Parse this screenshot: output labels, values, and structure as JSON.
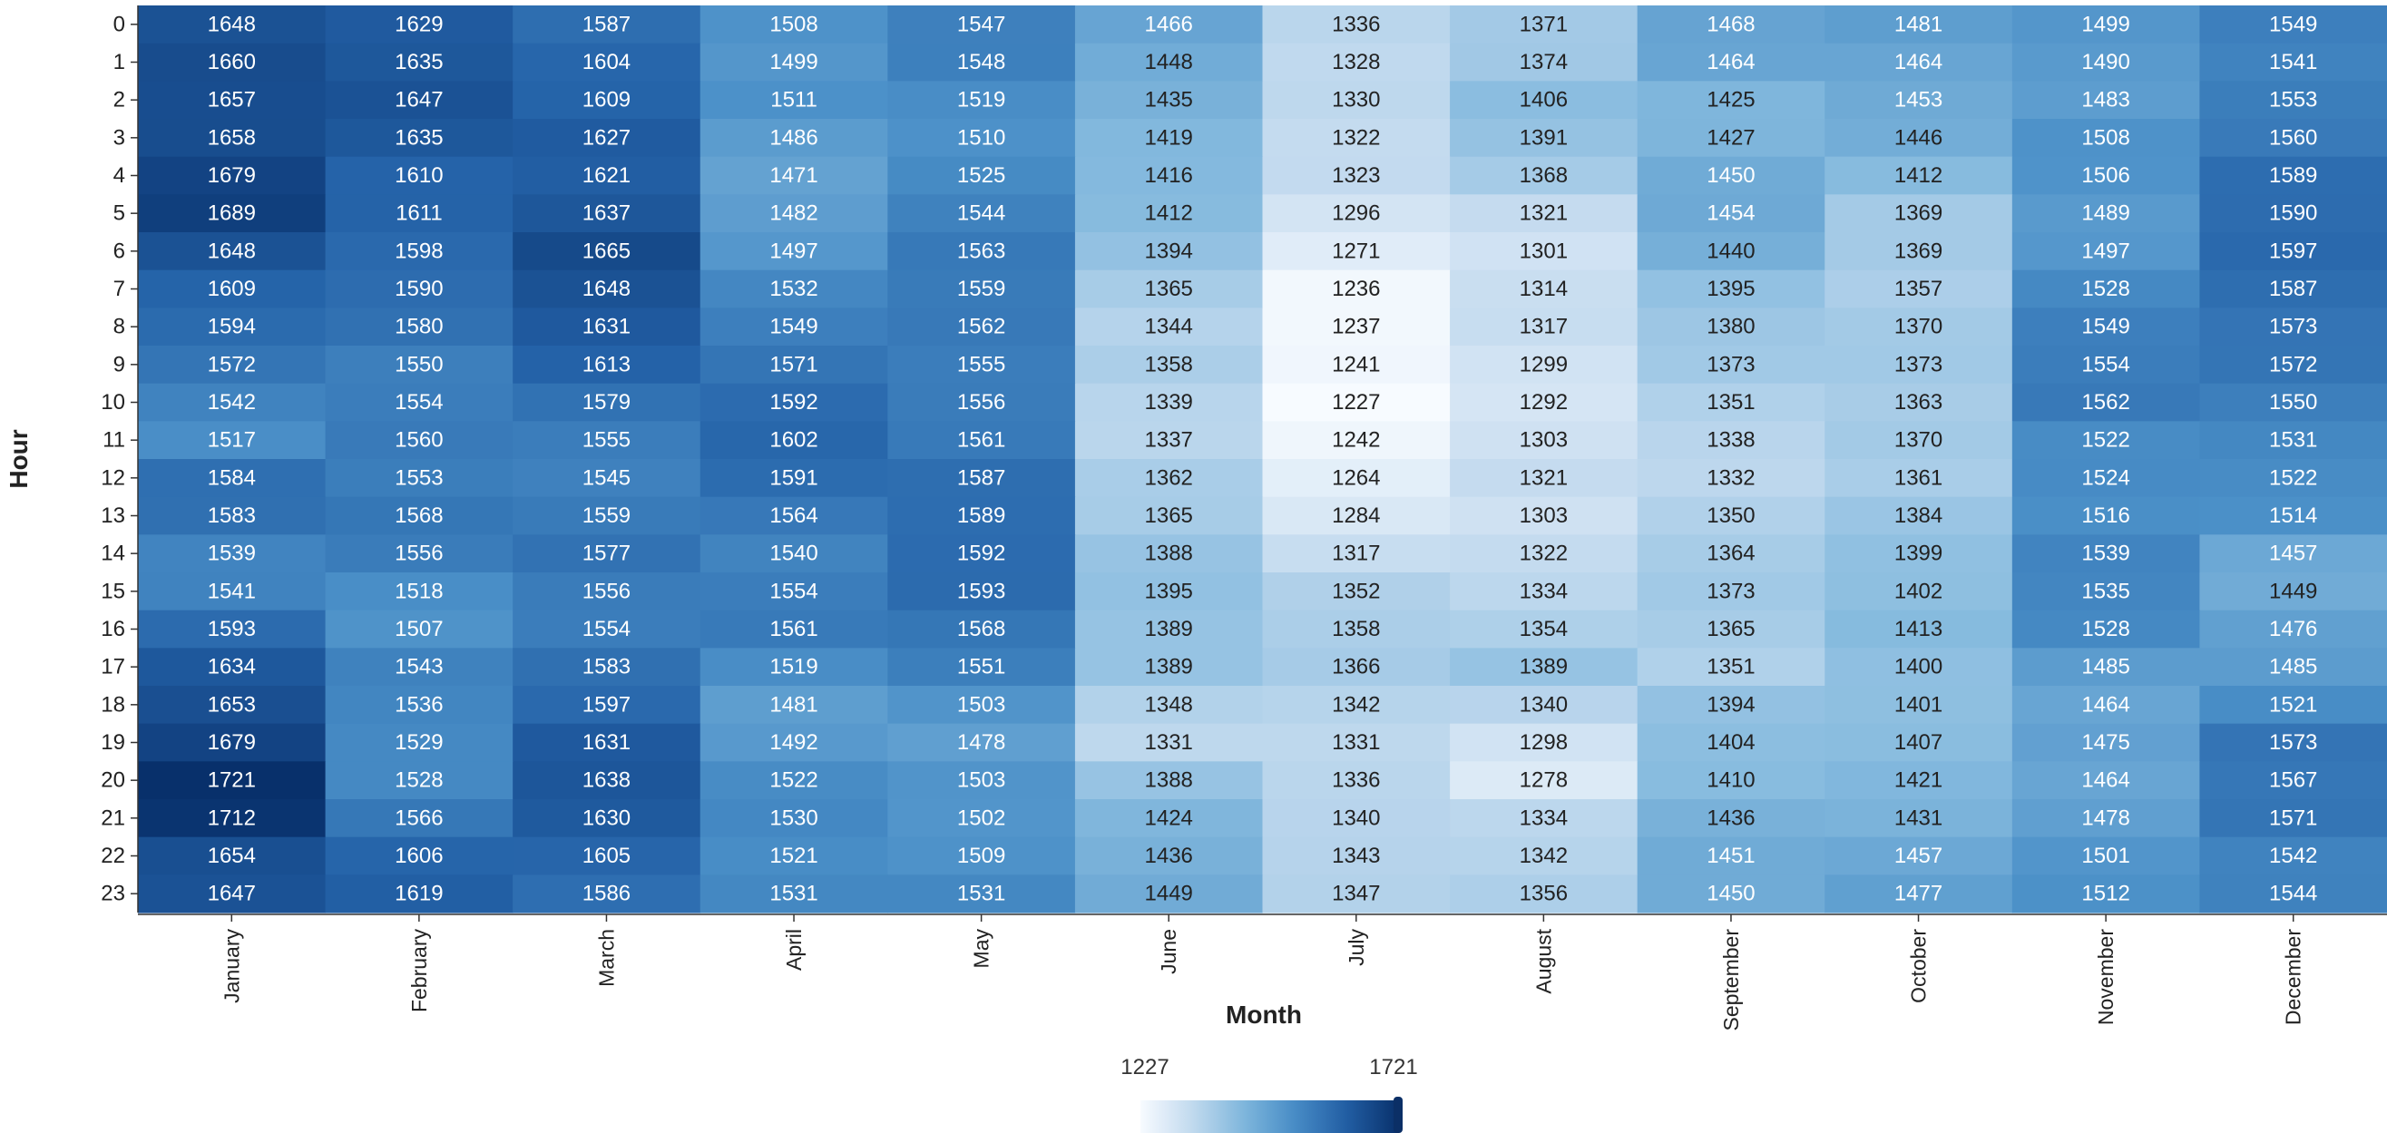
{
  "chart_data": {
    "type": "heatmap",
    "title": "",
    "xlabel": "Month",
    "ylabel": "Hour",
    "x_categories": [
      "January",
      "February",
      "March",
      "April",
      "May",
      "June",
      "July",
      "August",
      "September",
      "October",
      "November",
      "December"
    ],
    "y_categories": [
      "0",
      "1",
      "2",
      "3",
      "4",
      "5",
      "6",
      "7",
      "8",
      "9",
      "10",
      "11",
      "12",
      "13",
      "14",
      "15",
      "16",
      "17",
      "18",
      "19",
      "20",
      "21",
      "22",
      "23"
    ],
    "values": [
      [
        1648,
        1629,
        1587,
        1508,
        1547,
        1466,
        1336,
        1371,
        1468,
        1481,
        1499,
        1549
      ],
      [
        1660,
        1635,
        1604,
        1499,
        1548,
        1448,
        1328,
        1374,
        1464,
        1464,
        1490,
        1541
      ],
      [
        1657,
        1647,
        1609,
        1511,
        1519,
        1435,
        1330,
        1406,
        1425,
        1453,
        1483,
        1553
      ],
      [
        1658,
        1635,
        1627,
        1486,
        1510,
        1419,
        1322,
        1391,
        1427,
        1446,
        1508,
        1560
      ],
      [
        1679,
        1610,
        1621,
        1471,
        1525,
        1416,
        1323,
        1368,
        1450,
        1412,
        1506,
        1589
      ],
      [
        1689,
        1611,
        1637,
        1482,
        1544,
        1412,
        1296,
        1321,
        1454,
        1369,
        1489,
        1590
      ],
      [
        1648,
        1598,
        1665,
        1497,
        1563,
        1394,
        1271,
        1301,
        1440,
        1369,
        1497,
        1597
      ],
      [
        1609,
        1590,
        1648,
        1532,
        1559,
        1365,
        1236,
        1314,
        1395,
        1357,
        1528,
        1587
      ],
      [
        1594,
        1580,
        1631,
        1549,
        1562,
        1344,
        1237,
        1317,
        1380,
        1370,
        1549,
        1573
      ],
      [
        1572,
        1550,
        1613,
        1571,
        1555,
        1358,
        1241,
        1299,
        1373,
        1373,
        1554,
        1572
      ],
      [
        1542,
        1554,
        1579,
        1592,
        1556,
        1339,
        1227,
        1292,
        1351,
        1363,
        1562,
        1550
      ],
      [
        1517,
        1560,
        1555,
        1602,
        1561,
        1337,
        1242,
        1303,
        1338,
        1370,
        1522,
        1531
      ],
      [
        1584,
        1553,
        1545,
        1591,
        1587,
        1362,
        1264,
        1321,
        1332,
        1361,
        1524,
        1522
      ],
      [
        1583,
        1568,
        1559,
        1564,
        1589,
        1365,
        1284,
        1303,
        1350,
        1384,
        1516,
        1514
      ],
      [
        1539,
        1556,
        1577,
        1540,
        1592,
        1388,
        1317,
        1322,
        1364,
        1399,
        1539,
        1457
      ],
      [
        1541,
        1518,
        1556,
        1554,
        1593,
        1395,
        1352,
        1334,
        1373,
        1402,
        1535,
        1449
      ],
      [
        1593,
        1507,
        1554,
        1561,
        1568,
        1389,
        1358,
        1354,
        1365,
        1413,
        1528,
        1476
      ],
      [
        1634,
        1543,
        1583,
        1519,
        1551,
        1389,
        1366,
        1389,
        1351,
        1400,
        1485,
        1485
      ],
      [
        1653,
        1536,
        1597,
        1481,
        1503,
        1348,
        1342,
        1340,
        1394,
        1401,
        1464,
        1521
      ],
      [
        1679,
        1529,
        1631,
        1492,
        1478,
        1331,
        1331,
        1298,
        1404,
        1407,
        1475,
        1573
      ],
      [
        1721,
        1528,
        1638,
        1522,
        1503,
        1388,
        1336,
        1278,
        1410,
        1421,
        1464,
        1567
      ],
      [
        1712,
        1566,
        1630,
        1530,
        1502,
        1424,
        1340,
        1334,
        1436,
        1431,
        1478,
        1571
      ],
      [
        1654,
        1606,
        1605,
        1521,
        1509,
        1436,
        1343,
        1342,
        1451,
        1457,
        1501,
        1542
      ],
      [
        1647,
        1619,
        1586,
        1531,
        1531,
        1449,
        1347,
        1356,
        1450,
        1477,
        1512,
        1544
      ]
    ],
    "color_scale": {
      "name": "Blues",
      "min": 1227,
      "max": 1721,
      "min_label": "1227",
      "max_label": "1721",
      "low_color": "#f7fbff",
      "high_color": "#08306b"
    },
    "legend_placement": "bottom-center",
    "grid": false
  }
}
